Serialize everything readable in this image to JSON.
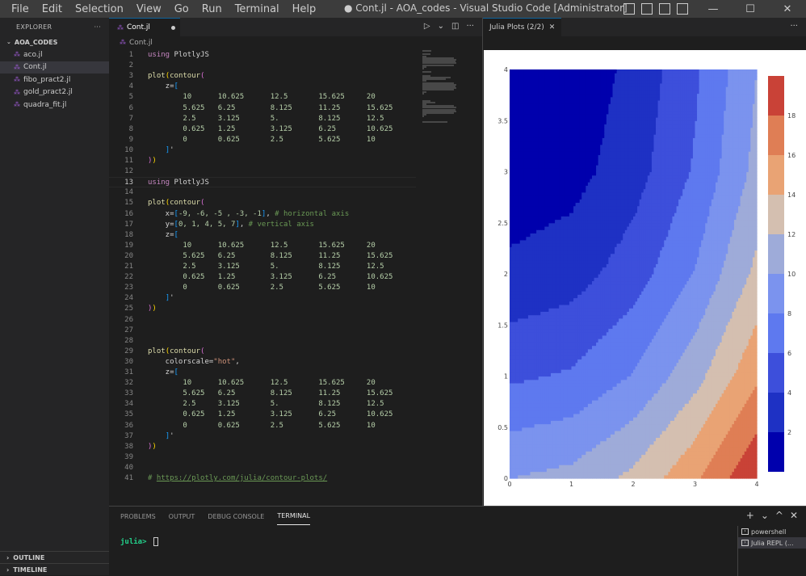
{
  "menu": [
    "File",
    "Edit",
    "Selection",
    "View",
    "Go",
    "Run",
    "Terminal",
    "Help"
  ],
  "window_title": "● Cont.jl - AOA_codes - Visual Studio Code [Administrator]",
  "window_controls": {
    "minimize": "—",
    "maximize": "☐",
    "close": "✕"
  },
  "explorer": {
    "header": "EXPLORER",
    "more": "···",
    "folder": "AOA_CODES",
    "files": [
      "aco.jl",
      "Cont.jl",
      "fibo_pract2.jl",
      "gold_pract2.jl",
      "quadra_fit.jl"
    ],
    "active_file": "Cont.jl",
    "outline": "OUTLINE",
    "timeline": "TIMELINE"
  },
  "editor": {
    "tab_label": "Cont.jl",
    "breadcrumb": "Cont.jl",
    "actions": {
      "run": "▷",
      "chevron": "⌄",
      "split": "◫",
      "more": "···"
    },
    "current_line": 13
  },
  "code_lines": [
    {
      "n": "1",
      "parts": [
        [
          "t-kw",
          "using"
        ],
        [
          "t-def",
          " PlotlyJS"
        ]
      ]
    },
    {
      "n": "2",
      "parts": []
    },
    {
      "n": "3",
      "parts": [
        [
          "t-fn",
          "plot"
        ],
        [
          "t-b1",
          "("
        ],
        [
          "t-fn",
          "contour"
        ],
        [
          "t-b2",
          "("
        ]
      ]
    },
    {
      "n": "4",
      "parts": [
        [
          "t-def",
          "    z="
        ],
        [
          "t-b3",
          "["
        ]
      ]
    },
    {
      "n": "5",
      "parts": [
        [
          "t-num",
          "        10      10.625      12.5       15.625     20"
        ]
      ]
    },
    {
      "n": "6",
      "parts": [
        [
          "t-num",
          "        5.625   6.25        8.125      11.25      15.625"
        ]
      ]
    },
    {
      "n": "7",
      "parts": [
        [
          "t-num",
          "        2.5     3.125       5.         8.125      12.5"
        ]
      ]
    },
    {
      "n": "8",
      "parts": [
        [
          "t-num",
          "        0.625   1.25        3.125      6.25       10.625"
        ]
      ]
    },
    {
      "n": "9",
      "parts": [
        [
          "t-num",
          "        0       0.625       2.5        5.625      10"
        ]
      ]
    },
    {
      "n": "10",
      "parts": [
        [
          "t-def",
          "    "
        ],
        [
          "t-b3",
          "]"
        ],
        [
          "t-def",
          "'"
        ]
      ]
    },
    {
      "n": "11",
      "parts": [
        [
          "t-b2",
          ")"
        ],
        [
          "t-b1",
          ")"
        ]
      ]
    },
    {
      "n": "12",
      "parts": []
    },
    {
      "n": "13",
      "parts": [
        [
          "t-kw",
          "using"
        ],
        [
          "t-def",
          " PlotlyJS"
        ]
      ]
    },
    {
      "n": "14",
      "parts": []
    },
    {
      "n": "15",
      "parts": [
        [
          "t-fn",
          "plot"
        ],
        [
          "t-b1",
          "("
        ],
        [
          "t-fn",
          "contour"
        ],
        [
          "t-b2",
          "("
        ]
      ]
    },
    {
      "n": "16",
      "parts": [
        [
          "t-def",
          "    x="
        ],
        [
          "t-b3",
          "["
        ],
        [
          "t-num",
          "-9, -6, -5 , -3, -1"
        ],
        [
          "t-b3",
          "]"
        ],
        [
          "t-def",
          ", "
        ],
        [
          "t-com",
          "# horizontal axis"
        ]
      ]
    },
    {
      "n": "17",
      "parts": [
        [
          "t-def",
          "    y="
        ],
        [
          "t-b3",
          "["
        ],
        [
          "t-num",
          "0, 1, 4, 5, 7"
        ],
        [
          "t-b3",
          "]"
        ],
        [
          "t-def",
          ", "
        ],
        [
          "t-com",
          "# vertical axis"
        ]
      ]
    },
    {
      "n": "18",
      "parts": [
        [
          "t-def",
          "    z="
        ],
        [
          "t-b3",
          "["
        ]
      ]
    },
    {
      "n": "19",
      "parts": [
        [
          "t-num",
          "        10      10.625      12.5       15.625     20"
        ]
      ]
    },
    {
      "n": "20",
      "parts": [
        [
          "t-num",
          "        5.625   6.25        8.125      11.25      15.625"
        ]
      ]
    },
    {
      "n": "21",
      "parts": [
        [
          "t-num",
          "        2.5     3.125       5.         8.125      12.5"
        ]
      ]
    },
    {
      "n": "22",
      "parts": [
        [
          "t-num",
          "        0.625   1.25        3.125      6.25       10.625"
        ]
      ]
    },
    {
      "n": "23",
      "parts": [
        [
          "t-num",
          "        0       0.625       2.5        5.625      10"
        ]
      ]
    },
    {
      "n": "24",
      "parts": [
        [
          "t-def",
          "    "
        ],
        [
          "t-b3",
          "]"
        ],
        [
          "t-def",
          "'"
        ]
      ]
    },
    {
      "n": "25",
      "parts": [
        [
          "t-b2",
          ")"
        ],
        [
          "t-b1",
          ")"
        ]
      ]
    },
    {
      "n": "26",
      "parts": []
    },
    {
      "n": "27",
      "parts": []
    },
    {
      "n": "28",
      "parts": []
    },
    {
      "n": "29",
      "parts": [
        [
          "t-fn",
          "plot"
        ],
        [
          "t-b1",
          "("
        ],
        [
          "t-fn",
          "contour"
        ],
        [
          "t-b2",
          "("
        ]
      ]
    },
    {
      "n": "30",
      "parts": [
        [
          "t-def",
          "    colorscale="
        ],
        [
          "t-str",
          "\"hot\""
        ],
        [
          "t-def",
          ","
        ]
      ]
    },
    {
      "n": "31",
      "parts": [
        [
          "t-def",
          "    z="
        ],
        [
          "t-b3",
          "["
        ]
      ]
    },
    {
      "n": "32",
      "parts": [
        [
          "t-num",
          "        10      10.625      12.5       15.625     20"
        ]
      ]
    },
    {
      "n": "33",
      "parts": [
        [
          "t-num",
          "        5.625   6.25        8.125      11.25      15.625"
        ]
      ]
    },
    {
      "n": "34",
      "parts": [
        [
          "t-num",
          "        2.5     3.125       5.         8.125      12.5"
        ]
      ]
    },
    {
      "n": "35",
      "parts": [
        [
          "t-num",
          "        0.625   1.25        3.125      6.25       10.625"
        ]
      ]
    },
    {
      "n": "36",
      "parts": [
        [
          "t-num",
          "        0       0.625       2.5        5.625      10"
        ]
      ]
    },
    {
      "n": "37",
      "parts": [
        [
          "t-def",
          "    "
        ],
        [
          "t-b3",
          "]"
        ],
        [
          "t-def",
          "'"
        ]
      ]
    },
    {
      "n": "38",
      "parts": [
        [
          "t-b2",
          ")"
        ],
        [
          "t-b1",
          ")"
        ]
      ]
    },
    {
      "n": "39",
      "parts": []
    },
    {
      "n": "40",
      "parts": []
    },
    {
      "n": "41",
      "parts": [
        [
          "t-com",
          "# "
        ],
        [
          "t-url",
          "https://plotly.com/julia/contour-plots/"
        ]
      ]
    }
  ],
  "plot_panel": {
    "tab_label": "Julia Plots (2/2)",
    "close": "✕",
    "more": "···"
  },
  "chart_data": {
    "type": "heatmap",
    "subtype": "filled-contour",
    "x": [
      0,
      1,
      2,
      3,
      4
    ],
    "y": [
      0,
      1,
      2,
      3,
      4
    ],
    "z": [
      [
        10,
        5.625,
        2.5,
        0.625,
        0
      ],
      [
        10.625,
        6.25,
        3.125,
        1.25,
        0.625
      ],
      [
        12.5,
        8.125,
        5,
        3.125,
        2.5
      ],
      [
        15.625,
        11.25,
        8.125,
        6.25,
        5.625
      ],
      [
        20,
        15.625,
        12.5,
        10.625,
        10
      ]
    ],
    "contour_levels": [
      0,
      2,
      4,
      6,
      8,
      10,
      12,
      14,
      16,
      18,
      20
    ],
    "band_colors": [
      "#0000ad",
      "#1e31c4",
      "#3d4fdb",
      "#5e79ef",
      "#7b93ee",
      "#9eabd9",
      "#d4bfb0",
      "#e9a374",
      "#df7e55",
      "#c94237",
      "#b00420"
    ],
    "x_ticks": [
      "0",
      "1",
      "2",
      "3",
      "4"
    ],
    "y_ticks": [
      "0",
      "0.5",
      "1",
      "1.5",
      "2",
      "2.5",
      "3",
      "3.5",
      "4"
    ],
    "colorbar_ticks": [
      "2",
      "4",
      "6",
      "8",
      "10",
      "12",
      "14",
      "16",
      "18"
    ],
    "xlim": [
      0,
      4
    ],
    "ylim": [
      0,
      4
    ],
    "colorbar_range": [
      0,
      20
    ],
    "title": "",
    "xlabel": "",
    "ylabel": ""
  },
  "bottom_panel": {
    "tabs": [
      "PROBLEMS",
      "OUTPUT",
      "DEBUG CONSOLE",
      "TERMINAL"
    ],
    "active_tab": "TERMINAL",
    "prompt": "julia>",
    "actions": [
      "+",
      "⌄",
      "^",
      "✕"
    ],
    "terminals": [
      "powershell",
      "Julia REPL (..."
    ],
    "active_terminal": "Julia REPL (..."
  }
}
